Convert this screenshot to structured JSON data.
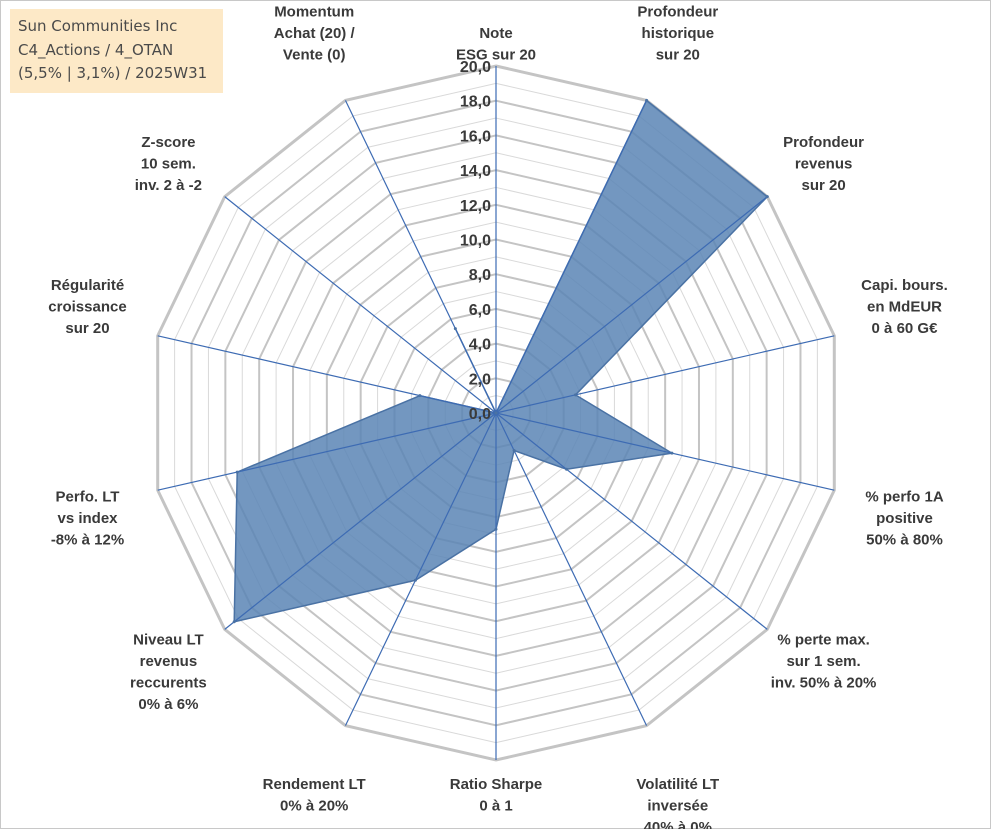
{
  "title_box": {
    "line1": "Sun Communities Inc",
    "line2": "C4_Actions / 4_OTAN",
    "line3": "(5,5% | 3,1%) / 2025W31"
  },
  "chart_data": {
    "type": "radar",
    "rmax": 20,
    "ticks": [
      "0,0",
      "2,0",
      "4,0",
      "6,0",
      "8,0",
      "10,0",
      "12,0",
      "14,0",
      "16,0",
      "18,0",
      "20,0"
    ],
    "axes": [
      [
        "Note",
        "ESG sur 20"
      ],
      [
        "Profondeur",
        "historique",
        "sur 20"
      ],
      [
        "Profondeur",
        "revenus",
        "sur 20"
      ],
      [
        "Capi. bours.",
        "en MdEUR",
        "0 à 60 G€"
      ],
      [
        "% perfo 1A",
        "positive",
        "50% à 80%"
      ],
      [
        "% perte max.",
        "sur 1 sem.",
        "inv. 50% à 20%"
      ],
      [
        "Volatilité LT",
        "inversée",
        "40% à 0%"
      ],
      [
        "Ratio Sharpe",
        "0 à 1"
      ],
      [
        "Rendement LT",
        "0% à 20%"
      ],
      [
        "Niveau LT",
        "revenus",
        "reccurents",
        "0% à 6%"
      ],
      [
        "Perfo. LT",
        "vs index",
        "-8% à 12%"
      ],
      [
        "Régularité",
        "croissance",
        "sur 20"
      ],
      [
        "Z-score",
        "10 sem.",
        "inv. 2 à -2"
      ],
      [
        "Momentum",
        "Achat (20) /",
        "Vente (0)"
      ]
    ],
    "values": [
      0,
      20,
      20,
      4.7,
      10.4,
      5.2,
      2.4,
      6.7,
      10.7,
      19.3,
      15.3,
      4.5,
      0,
      5.4
    ],
    "colors": {
      "fill": "#5b85b5",
      "stroke": "#4a72a4",
      "spoke": "#3d6bb3",
      "grid_major": "#c4c4c4",
      "grid_minor": "#d9d9d9"
    }
  }
}
